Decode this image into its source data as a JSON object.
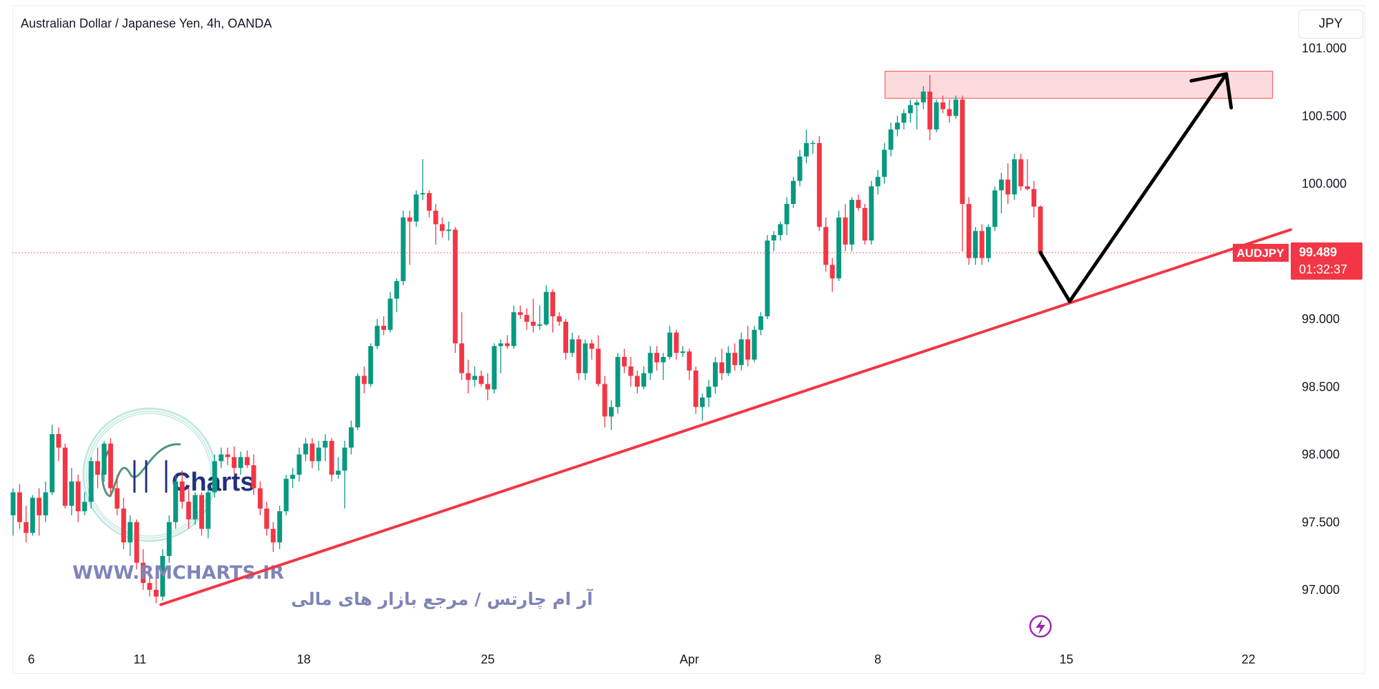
{
  "header": {
    "title": "Australian Dollar / Japanese Yen, 4h, OANDA",
    "currency_button": "JPY"
  },
  "watermark": {
    "logo_text": "Charts",
    "url": "WWW.RMCHARTS.IR",
    "tagline": "آر ام چارتس / مرجع بازار های مالی"
  },
  "price_tag": {
    "symbol": "AUDJPY",
    "price": "99.489",
    "countdown": "01:32:37"
  },
  "colors": {
    "up": "#089981",
    "down": "#f23645",
    "trendline": "#f23645",
    "zone_fill": "#fcd6da",
    "zone_border": "#f7525f",
    "arrow": "#000000",
    "lightning": "#9c27b0"
  },
  "icons": {
    "lightning": "lightning-icon"
  },
  "chart_data": {
    "type": "candlestick",
    "title": "Australian Dollar / Japanese Yen, 4h, OANDA",
    "ylim": [
      96.6,
      101.2
    ],
    "yticks": [
      "101.000",
      "100.500",
      "100.000",
      "99.000",
      "98.500",
      "98.000",
      "97.500",
      "97.000"
    ],
    "ytick_values": [
      101,
      100.5,
      100,
      99,
      98.5,
      98,
      97.5,
      97
    ],
    "xticks": [
      {
        "label": "6",
        "candle": 2.8
      },
      {
        "label": "11",
        "candle": 19.5
      },
      {
        "label": "18",
        "candle": 44.7
      },
      {
        "label": "25",
        "candle": 73
      },
      {
        "label": "Apr",
        "candle": 104
      },
      {
        "label": "8",
        "candle": 133
      },
      {
        "label": "15",
        "candle": 162
      },
      {
        "label": "22",
        "candle": 190
      }
    ],
    "last_price": 99.489,
    "ohlc": [
      [
        97.55,
        97.75,
        97.4,
        97.72
      ],
      [
        97.72,
        97.78,
        97.45,
        97.5
      ],
      [
        97.5,
        97.62,
        97.35,
        97.42
      ],
      [
        97.42,
        97.7,
        97.4,
        97.68
      ],
      [
        97.68,
        97.75,
        97.4,
        97.55
      ],
      [
        97.55,
        97.8,
        97.5,
        97.72
      ],
      [
        97.72,
        98.22,
        97.7,
        98.15
      ],
      [
        98.15,
        98.2,
        97.95,
        98.05
      ],
      [
        98.05,
        98.08,
        97.6,
        97.62
      ],
      [
        97.62,
        97.9,
        97.55,
        97.8
      ],
      [
        97.8,
        97.85,
        97.5,
        97.58
      ],
      [
        97.58,
        97.72,
        97.55,
        97.65
      ],
      [
        97.65,
        97.98,
        97.6,
        97.95
      ],
      [
        97.95,
        98.05,
        97.75,
        97.85
      ],
      [
        97.85,
        98.1,
        97.8,
        98.08
      ],
      [
        98.08,
        98.12,
        97.7,
        97.75
      ],
      [
        97.75,
        97.85,
        97.55,
        97.6
      ],
      [
        97.6,
        97.68,
        97.3,
        97.35
      ],
      [
        97.35,
        97.55,
        97.25,
        97.5
      ],
      [
        97.5,
        97.52,
        97.15,
        97.2
      ],
      [
        97.2,
        97.3,
        97.0,
        97.05
      ],
      [
        97.05,
        97.15,
        96.95,
        97.0
      ],
      [
        97.0,
        97.1,
        96.9,
        96.95
      ],
      [
        96.95,
        97.3,
        96.92,
        97.25
      ],
      [
        97.25,
        97.55,
        97.2,
        97.5
      ],
      [
        97.5,
        97.85,
        97.45,
        97.8
      ],
      [
        97.8,
        97.88,
        97.6,
        97.65
      ],
      [
        97.65,
        97.75,
        97.45,
        97.52
      ],
      [
        97.52,
        97.72,
        97.48,
        97.7
      ],
      [
        97.7,
        97.72,
        97.4,
        97.45
      ],
      [
        97.45,
        97.75,
        97.38,
        97.72
      ],
      [
        97.72,
        98.0,
        97.68,
        97.95
      ],
      [
        97.95,
        98.05,
        97.9,
        98.0
      ],
      [
        98.0,
        98.05,
        97.92,
        97.98
      ],
      [
        97.98,
        98.06,
        97.85,
        97.9
      ],
      [
        97.9,
        98.02,
        97.85,
        97.98
      ],
      [
        97.98,
        98.03,
        97.9,
        97.92
      ],
      [
        97.92,
        98.0,
        97.7,
        97.75
      ],
      [
        97.75,
        97.8,
        97.55,
        97.6
      ],
      [
        97.6,
        97.65,
        97.4,
        97.45
      ],
      [
        97.45,
        97.5,
        97.28,
        97.35
      ],
      [
        97.35,
        97.62,
        97.3,
        97.58
      ],
      [
        97.58,
        97.85,
        97.55,
        97.82
      ],
      [
        97.82,
        97.9,
        97.75,
        97.85
      ],
      [
        97.85,
        98.05,
        97.8,
        98.0
      ],
      [
        98.0,
        98.12,
        97.95,
        98.08
      ],
      [
        98.08,
        98.12,
        97.9,
        97.95
      ],
      [
        97.95,
        98.1,
        97.88,
        98.05
      ],
      [
        98.05,
        98.15,
        97.95,
        98.1
      ],
      [
        98.1,
        98.12,
        97.8,
        97.85
      ],
      [
        97.85,
        97.98,
        97.82,
        97.88
      ],
      [
        97.88,
        98.1,
        97.6,
        98.05
      ],
      [
        98.05,
        98.25,
        98.0,
        98.2
      ],
      [
        98.2,
        98.6,
        98.18,
        98.58
      ],
      [
        98.58,
        98.65,
        98.45,
        98.52
      ],
      [
        98.52,
        98.82,
        98.5,
        98.8
      ],
      [
        98.8,
        99.0,
        98.78,
        98.95
      ],
      [
        98.95,
        99.02,
        98.88,
        98.92
      ],
      [
        98.92,
        99.2,
        98.9,
        99.15
      ],
      [
        99.15,
        99.3,
        99.05,
        99.28
      ],
      [
        99.28,
        99.8,
        99.25,
        99.75
      ],
      [
        99.75,
        99.8,
        99.4,
        99.72
      ],
      [
        99.72,
        99.95,
        99.68,
        99.92
      ],
      [
        99.92,
        100.18,
        99.88,
        99.93
      ],
      [
        99.93,
        99.95,
        99.75,
        99.8
      ],
      [
        99.8,
        99.85,
        99.55,
        99.7
      ],
      [
        99.7,
        99.75,
        99.6,
        99.65
      ],
      [
        99.65,
        99.72,
        99.58,
        99.66
      ],
      [
        99.66,
        99.68,
        98.75,
        98.82
      ],
      [
        98.82,
        99.05,
        98.55,
        98.6
      ],
      [
        98.6,
        98.7,
        98.45,
        98.55
      ],
      [
        98.55,
        98.65,
        98.5,
        98.58
      ],
      [
        98.58,
        98.62,
        98.5,
        98.52
      ],
      [
        98.52,
        98.6,
        98.4,
        98.48
      ],
      [
        98.48,
        98.82,
        98.45,
        98.8
      ],
      [
        98.8,
        98.85,
        98.6,
        98.82
      ],
      [
        98.82,
        98.88,
        98.78,
        98.8
      ],
      [
        98.8,
        99.1,
        98.78,
        99.05
      ],
      [
        99.05,
        99.1,
        99.0,
        99.03
      ],
      [
        99.03,
        99.08,
        98.92,
        98.98
      ],
      [
        98.98,
        99.15,
        98.9,
        98.95
      ],
      [
        98.95,
        99.1,
        98.92,
        98.96
      ],
      [
        98.96,
        99.25,
        98.95,
        99.2
      ],
      [
        99.2,
        99.22,
        98.9,
        99.02
      ],
      [
        99.02,
        99.05,
        98.95,
        98.98
      ],
      [
        98.98,
        99.0,
        98.7,
        98.75
      ],
      [
        98.75,
        98.9,
        98.72,
        98.85
      ],
      [
        98.85,
        98.88,
        98.55,
        98.6
      ],
      [
        98.6,
        98.85,
        98.55,
        98.82
      ],
      [
        98.82,
        98.85,
        98.7,
        98.78
      ],
      [
        98.78,
        98.88,
        98.5,
        98.52
      ],
      [
        98.52,
        98.58,
        98.2,
        98.28
      ],
      [
        98.28,
        98.4,
        98.18,
        98.35
      ],
      [
        98.35,
        98.75,
        98.3,
        98.72
      ],
      [
        98.72,
        98.78,
        98.6,
        98.65
      ],
      [
        98.65,
        98.72,
        98.5,
        98.58
      ],
      [
        98.58,
        98.62,
        98.45,
        98.5
      ],
      [
        98.5,
        98.65,
        98.48,
        98.6
      ],
      [
        98.6,
        98.8,
        98.55,
        98.75
      ],
      [
        98.75,
        98.8,
        98.62,
        98.68
      ],
      [
        98.68,
        98.75,
        98.55,
        98.72
      ],
      [
        98.72,
        98.95,
        98.7,
        98.9
      ],
      [
        98.9,
        98.92,
        98.7,
        98.75
      ],
      [
        98.75,
        98.8,
        98.72,
        98.76
      ],
      [
        98.76,
        98.78,
        98.55,
        98.62
      ],
      [
        98.62,
        98.65,
        98.3,
        98.35
      ],
      [
        98.35,
        98.45,
        98.25,
        98.42
      ],
      [
        98.42,
        98.55,
        98.35,
        98.5
      ],
      [
        98.5,
        98.72,
        98.45,
        98.68
      ],
      [
        98.68,
        98.78,
        98.55,
        98.6
      ],
      [
        98.6,
        98.8,
        98.58,
        98.75
      ],
      [
        98.75,
        98.82,
        98.62,
        98.66
      ],
      [
        98.66,
        98.9,
        98.62,
        98.85
      ],
      [
        98.85,
        98.95,
        98.65,
        98.7
      ],
      [
        98.7,
        98.95,
        98.68,
        98.92
      ],
      [
        98.92,
        99.05,
        98.88,
        99.02
      ],
      [
        99.02,
        99.62,
        99.0,
        99.58
      ],
      [
        99.58,
        99.65,
        99.5,
        99.62
      ],
      [
        99.62,
        99.72,
        99.58,
        99.7
      ],
      [
        99.7,
        99.9,
        99.62,
        99.85
      ],
      [
        99.85,
        100.05,
        99.82,
        100.02
      ],
      [
        100.02,
        100.25,
        99.98,
        100.2
      ],
      [
        100.2,
        100.4,
        100.15,
        100.3
      ],
      [
        100.3,
        100.32,
        100.22,
        100.3
      ],
      [
        100.3,
        100.35,
        99.65,
        99.68
      ],
      [
        99.68,
        99.75,
        99.35,
        99.4
      ],
      [
        99.4,
        99.45,
        99.2,
        99.3
      ],
      [
        99.3,
        99.8,
        99.28,
        99.75
      ],
      [
        99.75,
        99.85,
        99.5,
        99.55
      ],
      [
        99.55,
        99.9,
        99.5,
        99.88
      ],
      [
        99.88,
        99.92,
        99.8,
        99.82
      ],
      [
        99.82,
        99.85,
        99.55,
        99.58
      ],
      [
        99.58,
        100.02,
        99.55,
        99.98
      ],
      [
        99.98,
        100.1,
        99.92,
        100.05
      ],
      [
        100.05,
        100.3,
        100.0,
        100.25
      ],
      [
        100.25,
        100.45,
        100.2,
        100.4
      ],
      [
        100.4,
        100.5,
        100.35,
        100.45
      ],
      [
        100.45,
        100.55,
        100.4,
        100.52
      ],
      [
        100.52,
        100.62,
        100.45,
        100.58
      ],
      [
        100.58,
        100.62,
        100.4,
        100.6
      ],
      [
        100.6,
        100.72,
        100.55,
        100.68
      ],
      [
        100.68,
        100.8,
        100.32,
        100.4
      ],
      [
        100.4,
        100.62,
        100.38,
        100.6
      ],
      [
        100.6,
        100.65,
        100.52,
        100.55
      ],
      [
        100.55,
        100.62,
        100.45,
        100.5
      ],
      [
        100.5,
        100.65,
        100.48,
        100.62
      ],
      [
        100.62,
        100.65,
        99.5,
        99.85
      ],
      [
        99.85,
        99.9,
        99.4,
        99.45
      ],
      [
        99.45,
        99.68,
        99.4,
        99.65
      ],
      [
        99.65,
        99.7,
        99.4,
        99.45
      ],
      [
        99.45,
        99.7,
        99.42,
        99.68
      ],
      [
        99.68,
        99.98,
        99.65,
        99.95
      ],
      [
        99.95,
        100.08,
        99.78,
        100.03
      ],
      [
        100.03,
        100.15,
        99.85,
        99.92
      ],
      [
        99.92,
        100.22,
        99.88,
        100.18
      ],
      [
        100.18,
        100.22,
        99.95,
        99.98
      ],
      [
        99.98,
        100.18,
        99.95,
        99.96
      ],
      [
        99.96,
        100.02,
        99.75,
        99.83
      ],
      [
        99.83,
        99.84,
        99.48,
        99.49
      ]
    ],
    "annotations": {
      "trendline": {
        "from": {
          "candle": 22.7,
          "price": 96.89
        },
        "to": {
          "candle": 196.5,
          "price": 99.66
        }
      },
      "resistance_zone": {
        "from_candle": 134.1,
        "to_candle": 193.7,
        "price_low": 100.63,
        "price_high": 100.83
      },
      "projection_path": [
        {
          "candle": 158,
          "price": 99.49
        },
        {
          "candle": 162.5,
          "price": 99.13
        },
        {
          "candle": 186.6,
          "price": 100.81
        }
      ]
    }
  }
}
